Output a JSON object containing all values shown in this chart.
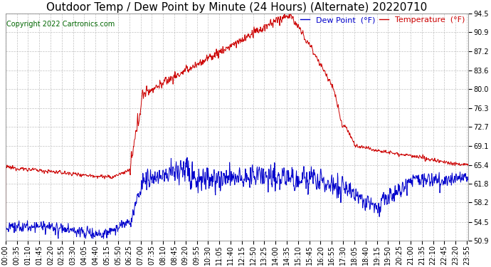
{
  "title": "Outdoor Temp / Dew Point by Minute (24 Hours) (Alternate) 20220710",
  "copyright": "Copyright 2022 Cartronics.com",
  "legend_dew": "Dew Point  (°F)",
  "legend_temp": "Temperature  (°F)",
  "bg_color": "#ffffff",
  "plot_bg_color": "#ffffff",
  "grid_color": "#bbbbbb",
  "temp_color": "#cc0000",
  "dew_color": "#0000cc",
  "yticks": [
    50.9,
    54.5,
    58.2,
    61.8,
    65.4,
    69.1,
    72.7,
    76.3,
    80.0,
    83.6,
    87.2,
    90.9,
    94.5
  ],
  "ymin": 50.9,
  "ymax": 94.5,
  "title_fontsize": 11,
  "copyright_fontsize": 7,
  "legend_fontsize": 8,
  "tick_fontsize": 7,
  "xtick_step": 35,
  "n_minutes": 1440
}
